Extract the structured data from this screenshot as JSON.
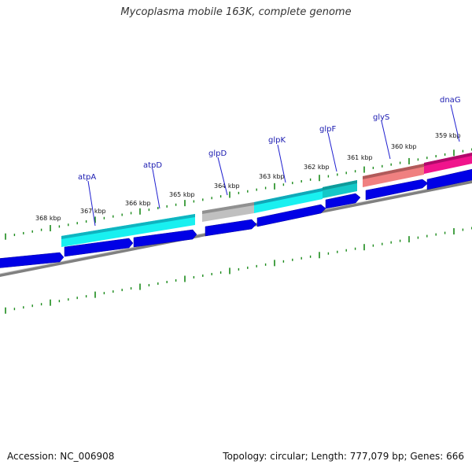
{
  "title": "Mycoplasma mobile 163K, complete genome",
  "footer": {
    "accession": "Accession: NC_006908",
    "summary": "Topology: circular; Length: 777,079 bp; Genes: 666"
  },
  "map": {
    "unit": "kbp",
    "ticks": [
      {
        "pos_kbp": 368,
        "label": "368 kbp"
      },
      {
        "pos_kbp": 367,
        "label": "367 kbp"
      },
      {
        "pos_kbp": 366,
        "label": "366 kbp"
      },
      {
        "pos_kbp": 365,
        "label": "365 kbp"
      },
      {
        "pos_kbp": 364,
        "label": "364 kbp"
      },
      {
        "pos_kbp": 363,
        "label": "363 kbp"
      },
      {
        "pos_kbp": 362,
        "label": "362 kbp"
      },
      {
        "pos_kbp": 361,
        "label": "361 kbp"
      },
      {
        "pos_kbp": 360,
        "label": "360 kbp"
      },
      {
        "pos_kbp": 359,
        "label": "359 kbp"
      }
    ],
    "gene_labels": [
      "atpA",
      "atpD",
      "glpD",
      "glpK",
      "glpF",
      "glyS",
      "dnaG"
    ],
    "colors": {
      "cds": "#0000e6",
      "backbone": "#808080",
      "tick": "#1a8a1a",
      "cyan": "#19f0f0",
      "grey": "#b4b4b4",
      "teal": "#14c8c8",
      "salmon": "#f08080",
      "magenta": "#f0148c",
      "label": "#1a1ab0"
    }
  }
}
